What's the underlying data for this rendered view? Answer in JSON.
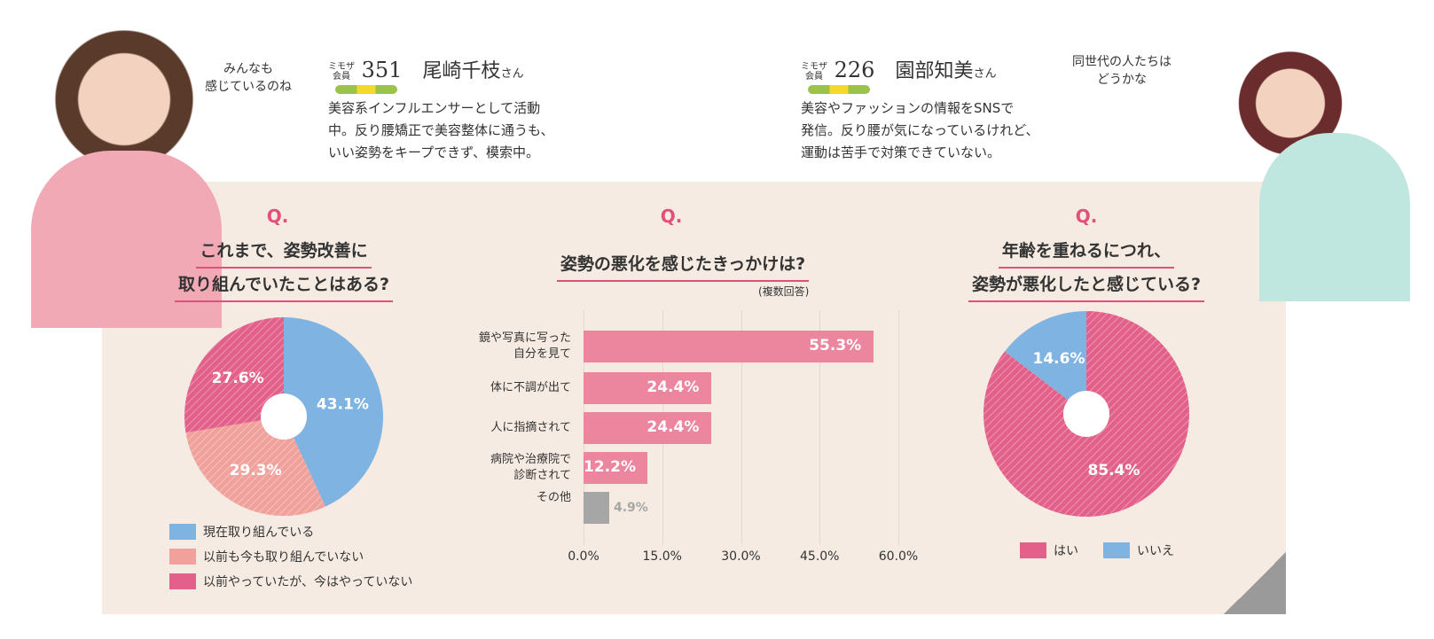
{
  "left_person": {
    "bubble": [
      "みんなも",
      "感じているのね"
    ],
    "member_label": [
      "ミモザ",
      "会員"
    ],
    "member_no": "351",
    "name": "尾崎千枝",
    "honorific": "さん",
    "desc": [
      "美容系インフルエンサーとして活動",
      "中。反り腰矯正で美容整体に通うも、",
      "いい姿勢をキープできず、模索中。"
    ]
  },
  "right_person": {
    "bubble": [
      "同世代の人たちは",
      "どうかな"
    ],
    "member_label": [
      "ミモザ",
      "会員"
    ],
    "member_no": "226",
    "name": "園部知美",
    "honorific": "さん",
    "desc": [
      "美容やファッションの情報をSNSで",
      "発信。反り腰が気になっているけれど、",
      "運動は苦手で対策できていない。"
    ]
  },
  "colors": {
    "blue": "#7fb3e1",
    "salmon": "#f0a19b",
    "pink": "#e2608a",
    "bar": "#ec859e",
    "gray": "#a6a6a6",
    "panel": "#f6ebe2"
  },
  "chart_data": [
    {
      "type": "pie",
      "q": "Q.",
      "title": [
        "これまで、姿勢改善に",
        "取り組んでいたことはある?"
      ],
      "labels": [
        "現在取り組んでいる",
        "以前も今も取り組んでいない",
        "以前やっていたが、今はやっていない"
      ],
      "values": [
        43.1,
        29.3,
        27.6
      ],
      "value_labels": [
        "43.1%",
        "29.3%",
        "27.6%"
      ],
      "legend": "bottom"
    },
    {
      "type": "bar",
      "q": "Q.",
      "title": "姿勢の悪化を感じたきっかけは?",
      "note": "(複数回答)",
      "categories": [
        [
          "鏡や写真に写った",
          "自分を見て"
        ],
        [
          "体に不調が出て"
        ],
        [
          "人に指摘されて"
        ],
        [
          "病院や治療院で",
          "診断されて"
        ],
        [
          "その他"
        ]
      ],
      "values": [
        55.3,
        24.4,
        24.4,
        12.2,
        4.9
      ],
      "value_labels": [
        "55.3%",
        "24.4%",
        "24.4%",
        "12.2%",
        "4.9%"
      ],
      "xlim": [
        0,
        60
      ],
      "xticks": [
        "0.0%",
        "15.0%",
        "30.0%",
        "45.0%",
        "60.0%"
      ],
      "grid": true
    },
    {
      "type": "pie",
      "q": "Q.",
      "title": [
        "年齢を重ねるにつれ、",
        "姿勢が悪化したと感じている?"
      ],
      "labels": [
        "はい",
        "いいえ"
      ],
      "values": [
        85.4,
        14.6
      ],
      "value_labels": [
        "85.4%",
        "14.6%"
      ],
      "legend": "bottom"
    }
  ]
}
